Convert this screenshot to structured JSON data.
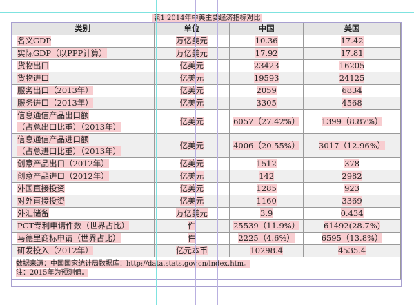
{
  "title": "表1  2014年中美主要经济指标对比",
  "headers": [
    "类别",
    "单位",
    "中国",
    "美国"
  ],
  "rows": [
    {
      "cat": "名义GDP",
      "unit": "万亿美元",
      "cn": "10.36",
      "us": "17.42"
    },
    {
      "cat": "实际GDP（以PPP计算）",
      "unit": "万亿美元",
      "cn": "17.92",
      "us": "17.81"
    },
    {
      "cat": "货物出口",
      "unit": "亿美元",
      "cn": "23423",
      "us": "16205"
    },
    {
      "cat": "货物进口",
      "unit": "亿美元",
      "cn": "19593",
      "us": "24125"
    },
    {
      "cat": "服务出口（2013年）",
      "unit": "亿美元",
      "cn": "2059",
      "us": "6834"
    },
    {
      "cat": "服务进口（2013年）",
      "unit": "亿美元",
      "cn": "3305",
      "us": "4568"
    },
    {
      "cat": "信息通信产品出口额",
      "cat2": "（占总出口比重）（2013年）",
      "unit": "亿美元",
      "cn": "6057（27.42%）",
      "us": "1399（8.87%）"
    },
    {
      "cat": "信息通信产品进口额",
      "cat2": "（占总进口比重）（2013年）",
      "unit": "亿美元",
      "cn": "4006（20.55%）",
      "us": "3017（12.96%）"
    },
    {
      "cat": "创意产品出口（2012年）",
      "unit": "亿美元",
      "cn": "1512",
      "us": "378"
    },
    {
      "cat": "创意产品进口（2012年）",
      "unit": "亿美元",
      "cn": "142",
      "us": "2982"
    },
    {
      "cat": "外国直接投资",
      "unit": "亿美元",
      "cn": "1285",
      "us": "923"
    },
    {
      "cat": "对外直接投资",
      "unit": "亿美元",
      "cn": "1160",
      "us": "3369"
    },
    {
      "cat": "外汇储备",
      "unit": "万亿美元",
      "cn": "3.9",
      "us": "0.434"
    },
    {
      "cat": "PCT专利申请件数（世界占比）",
      "unit": "件",
      "cn": "25539（11.9%）",
      "us": "61492(28.7%)"
    },
    {
      "cat": "马德里商标申请（世界占比）",
      "unit": "件",
      "cn": "2225（4.6%）",
      "us": "6595（13.8%）"
    },
    {
      "cat": "研发投入（2012年）",
      "unit": "亿元本币",
      "cn": "10298.4",
      "us": "4535.4"
    }
  ],
  "source": "数据来源：中国国家统计局数据库：http://data.stats.gov.cn/index.htm。",
  "note": "注：2015年为预测值。",
  "colors": {
    "highlight": "#f8cdd0",
    "guide_cyan": "#7fe3e0",
    "guide_purple": "#b9b0e0"
  }
}
